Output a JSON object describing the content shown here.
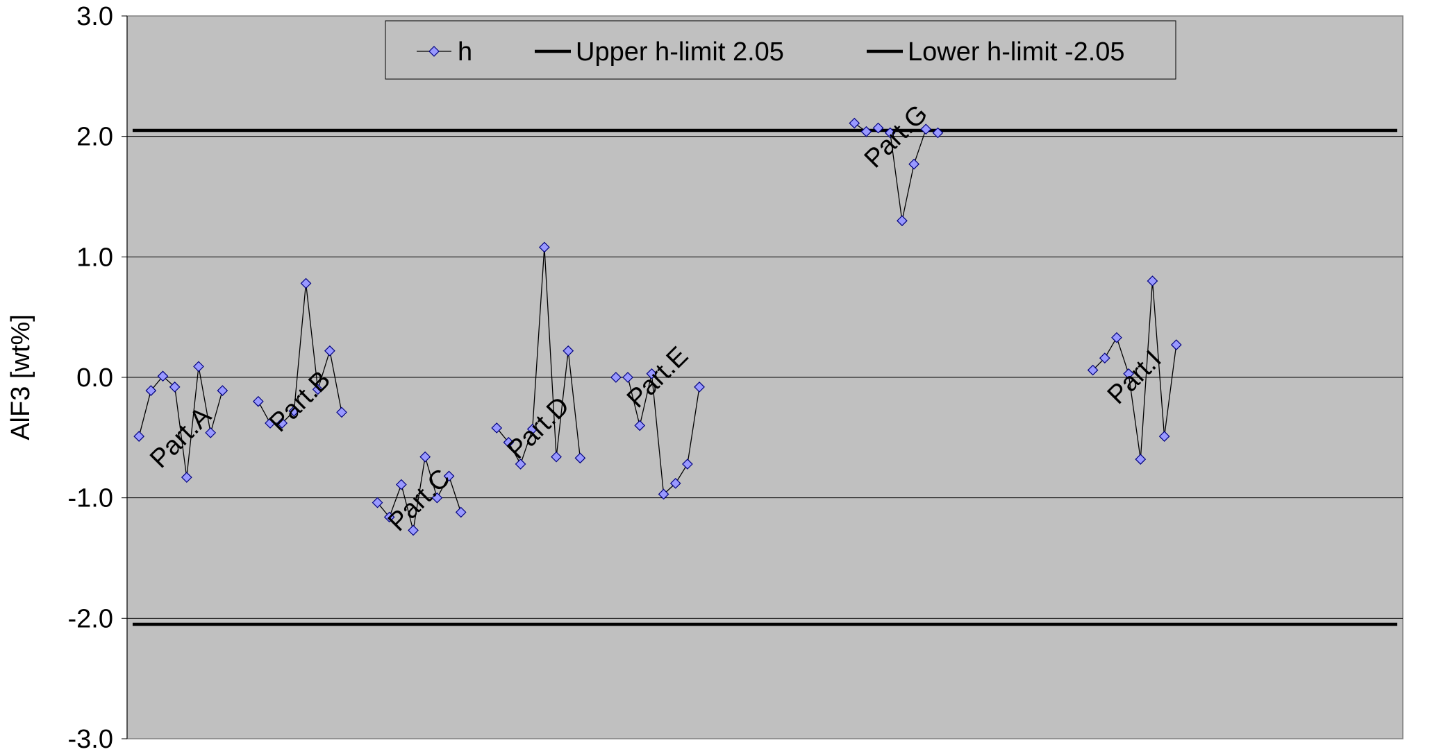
{
  "chart_data": {
    "type": "line",
    "title": "",
    "xlabel": "",
    "ylabel": "AlF3 [wt%]",
    "ylim": [
      -3.0,
      3.0
    ],
    "yticks": [
      "3.0",
      "2.0",
      "1.0",
      "0.0",
      "-1.0",
      "-2.0",
      "-3.0"
    ],
    "grid": true,
    "legend_position": "top-center",
    "plot_background": "#c0c0c0",
    "marker_color": "#9999ff",
    "line_color": "#000000",
    "x_range": [
      0,
      107
    ],
    "series": [
      {
        "name": "h",
        "segments": [
          {
            "x": [
              1,
              2,
              3,
              4,
              5,
              6,
              7,
              8
            ],
            "y": [
              -0.49,
              -0.11,
              0.01,
              -0.08,
              -0.83,
              0.09,
              -0.46,
              -0.11
            ]
          },
          {
            "x": [
              11,
              12,
              13,
              14,
              15,
              16,
              17,
              18
            ],
            "y": [
              -0.2,
              -0.38,
              -0.38,
              -0.28,
              0.78,
              -0.1,
              0.22,
              -0.29
            ]
          },
          {
            "x": [
              21,
              22,
              23,
              24,
              25,
              26,
              27,
              28
            ],
            "y": [
              -1.04,
              -1.16,
              -0.89,
              -1.27,
              -0.66,
              -1.0,
              -0.82,
              -1.12
            ]
          },
          {
            "x": [
              31,
              32,
              33,
              34,
              35,
              36,
              37,
              38
            ],
            "y": [
              -0.42,
              -0.54,
              -0.72,
              -0.43,
              1.08,
              -0.66,
              0.22,
              -0.67
            ]
          },
          {
            "x": [
              41,
              42,
              43,
              44,
              45,
              46,
              47,
              48
            ],
            "y": [
              0.0,
              0.0,
              -0.4,
              0.03,
              -0.97,
              -0.88,
              -0.72,
              -0.08
            ]
          },
          {
            "x": [
              61,
              62,
              63,
              64,
              65,
              66,
              67,
              68
            ],
            "y": [
              2.11,
              2.04,
              2.07,
              2.03,
              1.3,
              1.77,
              2.06,
              2.03
            ]
          },
          {
            "x": [
              81,
              82,
              83,
              84,
              85,
              86,
              87,
              88
            ],
            "y": [
              0.06,
              0.16,
              0.33,
              0.03,
              -0.68,
              0.8,
              -0.49,
              0.27
            ]
          }
        ]
      },
      {
        "name": "Upper h-limit 2.05",
        "y": 2.05
      },
      {
        "name": "Lower h-limit -2.05",
        "y": -2.05
      }
    ],
    "annotations": [
      {
        "text": "Part.A",
        "x": 5,
        "y": -0.55
      },
      {
        "text": "Part.B",
        "x": 15,
        "y": -0.25
      },
      {
        "text": "Part.C",
        "x": 25,
        "y": -1.07
      },
      {
        "text": "Part.D",
        "x": 35,
        "y": -0.47
      },
      {
        "text": "Part.E",
        "x": 45,
        "y": -0.05
      },
      {
        "text": "Part.G",
        "x": 65,
        "y": 1.95
      },
      {
        "text": "Part.I",
        "x": 85,
        "y": -0.05
      }
    ]
  }
}
